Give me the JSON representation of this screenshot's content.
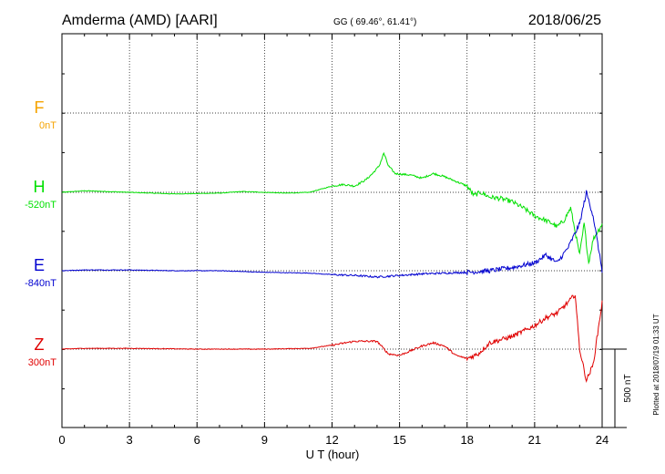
{
  "header": {
    "station": "Amderma (AMD)  [AARI]",
    "coords": "GG ( 69.46°,  61.41°)",
    "date": "2018/06/25"
  },
  "footer": {
    "plotted": "Plotted at 2018/07/19 01:33 UT"
  },
  "scale_bar": {
    "label": "500 nT",
    "value_nT": 500
  },
  "colors": {
    "F": "#f5a300",
    "H": "#00e000",
    "E": "#0000d0",
    "Z": "#e00000"
  },
  "chart_data": {
    "type": "line",
    "xlabel": "U T (hour)",
    "xlim": [
      0,
      24
    ],
    "x_ticks": [
      "0",
      "3",
      "6",
      "9",
      "12",
      "15",
      "18",
      "21",
      "24"
    ],
    "units": "nT",
    "grid": true,
    "channels": [
      {
        "name": "F",
        "baseline_label": "0nT",
        "baseline_nT": 0,
        "points": []
      },
      {
        "name": "H",
        "baseline_label": "-520nT",
        "baseline_nT": -520,
        "points": [
          [
            0,
            0
          ],
          [
            1,
            10
          ],
          [
            2,
            5
          ],
          [
            3,
            0
          ],
          [
            5,
            -10
          ],
          [
            7,
            -5
          ],
          [
            8,
            5
          ],
          [
            9,
            0
          ],
          [
            10,
            -5
          ],
          [
            11,
            0
          ],
          [
            11.5,
            20
          ],
          [
            12,
            40
          ],
          [
            12.5,
            50
          ],
          [
            13,
            40
          ],
          [
            13.5,
            80
          ],
          [
            13.8,
            120
          ],
          [
            14.1,
            170
          ],
          [
            14.3,
            250
          ],
          [
            14.5,
            170
          ],
          [
            14.8,
            120
          ],
          [
            15.5,
            110
          ],
          [
            16,
            90
          ],
          [
            16.5,
            120
          ],
          [
            17,
            100
          ],
          [
            17.5,
            70
          ],
          [
            18,
            40
          ],
          [
            18.3,
            -20
          ],
          [
            18.6,
            0
          ],
          [
            19,
            -30
          ],
          [
            19.5,
            -40
          ],
          [
            20,
            -60
          ],
          [
            20.5,
            -100
          ],
          [
            21,
            -150
          ],
          [
            21.5,
            -180
          ],
          [
            21.8,
            -200
          ],
          [
            22,
            -220
          ],
          [
            22.3,
            -180
          ],
          [
            22.6,
            -100
          ],
          [
            22.8,
            -250
          ],
          [
            23,
            -400
          ],
          [
            23.2,
            -200
          ],
          [
            23.4,
            -450
          ],
          [
            23.6,
            -300
          ],
          [
            23.8,
            -250
          ],
          [
            24,
            -200
          ]
        ]
      },
      {
        "name": "E",
        "baseline_label": "-840nT",
        "baseline_nT": -840,
        "points": [
          [
            0,
            0
          ],
          [
            1,
            5
          ],
          [
            3,
            5
          ],
          [
            5,
            0
          ],
          [
            7,
            0
          ],
          [
            9,
            -10
          ],
          [
            11,
            -15
          ],
          [
            12,
            -25
          ],
          [
            13,
            -30
          ],
          [
            14,
            -40
          ],
          [
            15,
            -30
          ],
          [
            16,
            -20
          ],
          [
            17,
            -15
          ],
          [
            18,
            -10
          ],
          [
            19,
            0
          ],
          [
            20,
            20
          ],
          [
            21,
            50
          ],
          [
            21.5,
            100
          ],
          [
            22,
            50
          ],
          [
            22.5,
            150
          ],
          [
            23,
            300
          ],
          [
            23.3,
            500
          ],
          [
            23.6,
            350
          ],
          [
            24,
            0
          ]
        ]
      },
      {
        "name": "Z",
        "baseline_label": "300nT",
        "baseline_nT": 300,
        "points": [
          [
            0,
            0
          ],
          [
            1,
            5
          ],
          [
            3,
            5
          ],
          [
            6,
            0
          ],
          [
            9,
            0
          ],
          [
            11,
            5
          ],
          [
            12,
            25
          ],
          [
            13,
            50
          ],
          [
            14,
            50
          ],
          [
            14.5,
            -30
          ],
          [
            15,
            -40
          ],
          [
            16,
            20
          ],
          [
            16.5,
            40
          ],
          [
            17,
            20
          ],
          [
            17.5,
            -40
          ],
          [
            18,
            -60
          ],
          [
            18.5,
            -30
          ],
          [
            19,
            40
          ],
          [
            20,
            80
          ],
          [
            21,
            150
          ],
          [
            21.5,
            200
          ],
          [
            22,
            230
          ],
          [
            22.5,
            300
          ],
          [
            22.8,
            350
          ],
          [
            23,
            0
          ],
          [
            23.3,
            -200
          ],
          [
            23.6,
            -100
          ],
          [
            24,
            300
          ]
        ]
      }
    ]
  }
}
